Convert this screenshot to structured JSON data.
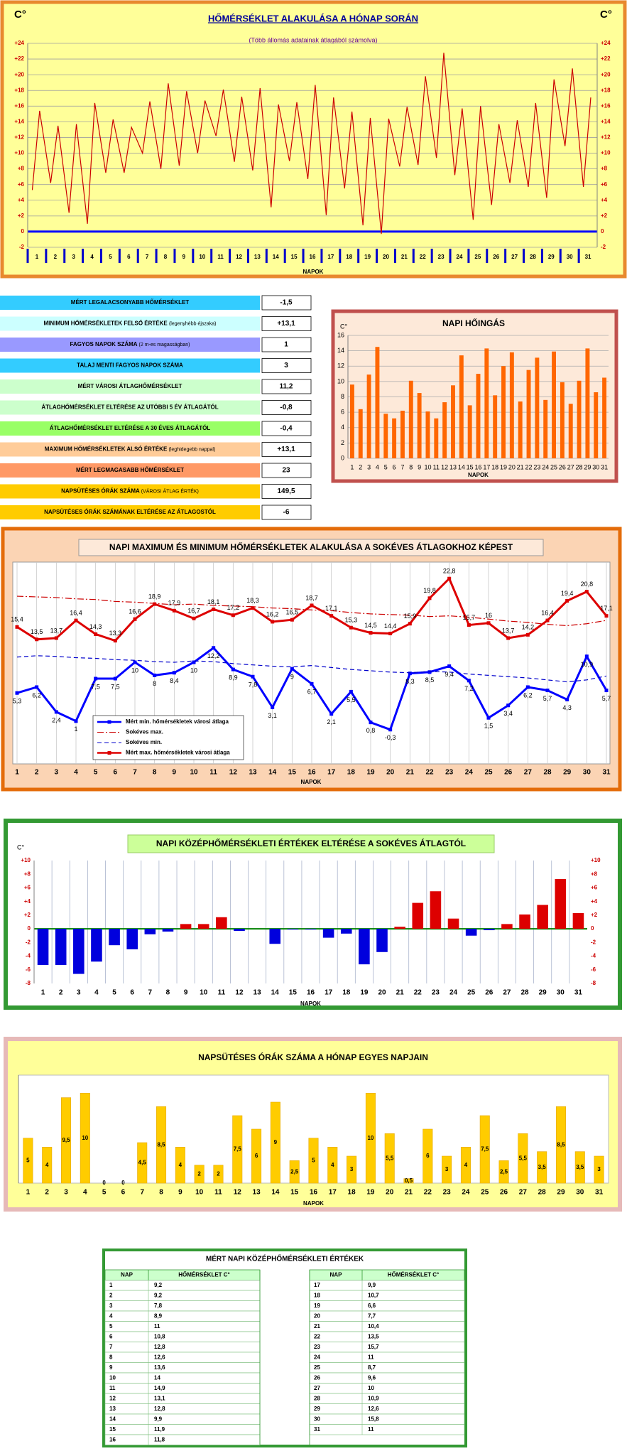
{
  "chart_data": [
    {
      "type": "line",
      "title": "HŐMÉRSÉKLET ALAKULÁSA A HÓNAP SORÁN",
      "subtitle": "(Több állomás adatainak átlagából számolva)",
      "y_unit": "C°",
      "xlabel": "NAPOK",
      "x": [
        0.75,
        1.15,
        1.75,
        2.15,
        2.75,
        3.15,
        3.75,
        4.15,
        4.75,
        5.15,
        5.75,
        6.15,
        6.75,
        7.15,
        7.75,
        8.15,
        8.75,
        9.15,
        9.75,
        10.15,
        10.75,
        11.15,
        11.75,
        12.15,
        12.75,
        13.15,
        13.75,
        14.15,
        14.75,
        15.15,
        15.75,
        16.15,
        16.75,
        17.15,
        17.75,
        18.15,
        18.75,
        19.15,
        19.75,
        20.15,
        20.75,
        21.15,
        21.75,
        22.15,
        22.75,
        23.15,
        23.75,
        24.15,
        24.75,
        25.15,
        25.75,
        26.15,
        26.75,
        27.15,
        27.75,
        28.15,
        28.75,
        29.15,
        29.75,
        30.15,
        30.75,
        31.15
      ],
      "values": [
        5.3,
        15.4,
        6.2,
        13.5,
        2.4,
        13.7,
        1,
        16.4,
        7.5,
        14.3,
        7.5,
        13.3,
        10,
        16.6,
        8,
        18.9,
        8.4,
        17.9,
        10,
        16.7,
        12.2,
        18.1,
        8.9,
        17.2,
        7.8,
        18.3,
        3.1,
        16.2,
        9,
        16.5,
        6.7,
        18.7,
        2.1,
        17.1,
        5.5,
        15.3,
        0.8,
        14.5,
        -0.3,
        14.4,
        8.3,
        15.9,
        8.5,
        19.8,
        9.4,
        22.8,
        7.2,
        15.7,
        1.5,
        16,
        3.4,
        13.7,
        6.2,
        14.2,
        5.7,
        16.4,
        4.3,
        19.4,
        10.9,
        20.8,
        5.7,
        17.1
      ],
      "color": "#cc0000",
      "xlim": [
        0.5,
        31.5
      ],
      "xticks": [
        1,
        2,
        3,
        4,
        5,
        6,
        7,
        8,
        9,
        10,
        11,
        12,
        13,
        14,
        15,
        16,
        17,
        18,
        19,
        20,
        21,
        22,
        23,
        24,
        25,
        26,
        27,
        28,
        29,
        30,
        31
      ],
      "ylim": [
        -2,
        24
      ],
      "yticks": [
        -2,
        0,
        {
          "value": 2,
          "label": "+2"
        },
        {
          "value": 4,
          "label": "+4"
        },
        {
          "value": 6,
          "label": "+6"
        },
        {
          "value": 8,
          "label": "+8"
        },
        {
          "value": 10,
          "label": "+10"
        },
        {
          "value": 12,
          "label": "+12"
        },
        {
          "value": 14,
          "label": "+14"
        },
        {
          "value": 16,
          "label": "+16"
        },
        {
          "value": 18,
          "label": "+18"
        },
        {
          "value": 20,
          "label": "+20"
        },
        {
          "value": 22,
          "label": "+22"
        },
        {
          "value": 24,
          "label": "+24"
        }
      ],
      "grid": true,
      "zero_line_color": "#0000ff"
    },
    {
      "type": "bar",
      "title": "NAPI HŐINGÁS",
      "y_unit": "C°",
      "xlabel": "NAPOK",
      "categories": [
        1,
        2,
        3,
        4,
        5,
        6,
        7,
        8,
        9,
        10,
        11,
        12,
        13,
        14,
        15,
        16,
        17,
        18,
        19,
        20,
        21,
        22,
        23,
        24,
        25,
        26,
        27,
        28,
        29,
        30,
        31
      ],
      "values": [
        9.6,
        6.4,
        10.9,
        14.5,
        5.8,
        5.2,
        6.2,
        10.1,
        8.5,
        6.1,
        5.2,
        7.3,
        9.5,
        13.4,
        6.9,
        11,
        14.3,
        8.2,
        12,
        13.8,
        7.4,
        11.5,
        13.1,
        7.6,
        13.9,
        9.9,
        7.1,
        10.1,
        14.3,
        8.6,
        10.5
      ],
      "color": "#ff6600",
      "ylim": [
        0,
        16
      ],
      "yticks": [
        0,
        2,
        4,
        6,
        8,
        10,
        12,
        14,
        16
      ],
      "grid": true
    },
    {
      "type": "line",
      "title": "NAPI MAXIMUM ÉS MINIMUM HŐMÉRSÉKLETEK ALAKULÁSA A SOKÉVES ÁTLAGOKHOZ KÉPEST",
      "xlabel": "NAPOK",
      "categories": [
        1,
        2,
        3,
        4,
        5,
        6,
        7,
        8,
        9,
        10,
        11,
        12,
        13,
        14,
        15,
        16,
        17,
        18,
        19,
        20,
        21,
        22,
        23,
        24,
        25,
        26,
        27,
        28,
        29,
        30,
        31
      ],
      "ylim": [
        -5,
        25
      ],
      "legend": "lower-left",
      "series": [
        {
          "name": "Mért min. hőmérsékletek városi átlaga",
          "color": "#0000ff",
          "style": "solid",
          "marker": "square",
          "values": [
            5.3,
            6.2,
            2.4,
            1,
            7.5,
            7.5,
            10,
            8,
            8.4,
            10,
            12.2,
            8.9,
            7.8,
            3.1,
            9,
            6.7,
            2.1,
            5.5,
            0.8,
            -0.3,
            8.3,
            8.5,
            9.4,
            7.2,
            1.5,
            3.4,
            6.2,
            5.7,
            4.3,
            10.9,
            5.7
          ],
          "value_labels": [
            "5,3",
            "6,2",
            "2,4",
            "1",
            "7,5",
            "7,5",
            "10",
            "8",
            "8,4",
            "10",
            "12,2",
            "8,9",
            "7,8",
            "3,1",
            "9",
            "6,7",
            "2,1",
            "5,5",
            "0,8",
            "-0,3",
            "8,3",
            "8,5",
            "9,4",
            "7,2",
            "1,5",
            "3,4",
            "6,2",
            "5,7",
            "4,3",
            "10,9",
            "5,7"
          ]
        },
        {
          "name": "Sokéves max.",
          "color": "#cc0000",
          "style": "dashdot",
          "values": [
            20.1,
            20.0,
            19.9,
            19.7,
            19.6,
            19.3,
            19.2,
            19.0,
            18.8,
            18.9,
            18.7,
            18.6,
            18.5,
            18.3,
            18.2,
            18.0,
            17.9,
            17.6,
            17.4,
            17.3,
            17.2,
            17.0,
            17.1,
            16.9,
            16.6,
            16.3,
            16.1,
            15.8,
            15.6,
            15.9,
            16.4
          ]
        },
        {
          "name": "Sokéves min.",
          "color": "#0000cc",
          "style": "dashed",
          "values": [
            10.8,
            11.0,
            10.9,
            10.7,
            10.6,
            10.4,
            10.3,
            10.1,
            10.0,
            10.2,
            10.1,
            9.8,
            9.6,
            9.4,
            9.3,
            9.5,
            9.2,
            8.9,
            8.7,
            8.5,
            8.4,
            8.6,
            8.5,
            8.2,
            8.0,
            7.8,
            7.6,
            7.3,
            7.0,
            7.3,
            7.9
          ]
        },
        {
          "name": "Mért max. hőmérsékletek városi átlaga",
          "color": "#dd0000",
          "style": "solid",
          "marker": "square",
          "values": [
            15.4,
            13.5,
            13.7,
            16.4,
            14.3,
            13.3,
            16.6,
            18.9,
            17.9,
            16.7,
            18.1,
            17.2,
            18.3,
            16.2,
            16.5,
            18.7,
            17.1,
            15.3,
            14.5,
            14.4,
            15.9,
            19.8,
            22.8,
            15.7,
            16,
            13.7,
            14.2,
            16.4,
            19.4,
            20.8,
            17.1
          ],
          "value_labels": [
            "15,4",
            "13,5",
            "13,7",
            "16,4",
            "14,3",
            "13,3",
            "16,6",
            "18,9",
            "17,9",
            "16,7",
            "18,1",
            "17,2",
            "18,3",
            "16,2",
            "16,5",
            "18,7",
            "17,1",
            "15,3",
            "14,5",
            "14,4",
            "15,9",
            "19,8",
            "22,8",
            "15,7",
            "16",
            "13,7",
            "14,2",
            "16,4",
            "19,4",
            "20,8",
            "17,1"
          ]
        }
      ]
    },
    {
      "type": "bar",
      "title": "NAPI KÖZÉPHŐMÉRSÉKLETI ÉRTÉKEK ELTÉRÉSE A SOKÉVES ÁTLAGTÓL",
      "y_unit": "C°",
      "xlabel": "NAPOK",
      "categories": [
        1,
        2,
        3,
        4,
        5,
        6,
        7,
        8,
        9,
        10,
        11,
        12,
        13,
        14,
        15,
        16,
        17,
        18,
        19,
        20,
        21,
        22,
        23,
        24,
        25,
        26,
        27,
        28,
        29,
        30,
        31
      ],
      "values": [
        -5.3,
        -5.3,
        -6.6,
        -4.8,
        -2.4,
        -3,
        -0.8,
        -0.4,
        0.7,
        0.7,
        1.7,
        -0.3,
        0,
        -2.2,
        -0.1,
        -0.1,
        -1.3,
        -0.7,
        -5.2,
        -3.4,
        0.3,
        3.8,
        5.5,
        1.5,
        -1,
        -0.2,
        0.7,
        2.1,
        3.5,
        7.3,
        2.3
      ],
      "positive_color": "#dd0000",
      "negative_color": "#0000dd",
      "zero_line_color": "#008000",
      "ylim": [
        -8,
        10
      ],
      "yticks": [
        -8,
        -6,
        -4,
        -2,
        0,
        {
          "value": 2,
          "label": "+2"
        },
        {
          "value": 4,
          "label": "+4"
        },
        {
          "value": 6,
          "label": "+6"
        },
        {
          "value": 8,
          "label": "+8"
        },
        {
          "value": 10,
          "label": "+10"
        }
      ]
    },
    {
      "type": "bar",
      "title": "NAPSÜTÉSES ÓRÁK SZÁMA A HÓNAP EGYES NAPJAIN",
      "xlabel": "NAPOK",
      "categories": [
        1,
        2,
        3,
        4,
        5,
        6,
        7,
        8,
        9,
        10,
        11,
        12,
        13,
        14,
        15,
        16,
        17,
        18,
        19,
        20,
        21,
        22,
        23,
        24,
        25,
        26,
        27,
        28,
        29,
        30,
        31
      ],
      "values": [
        5,
        4,
        9.5,
        10,
        0,
        0,
        4.5,
        8.5,
        4,
        2,
        2,
        7.5,
        6,
        9,
        2.5,
        5,
        4,
        3,
        10,
        5.5,
        0.5,
        6,
        3,
        4,
        7.5,
        2.5,
        5.5,
        3.5,
        8.5,
        3.5,
        3
      ],
      "value_labels": [
        "5",
        "4",
        "9,5",
        "10",
        "0",
        "0",
        "4,5",
        "8,5",
        "4",
        "2",
        "2",
        "7,5",
        "6",
        "9",
        "2,5",
        "5",
        "4",
        "3",
        "10",
        "5,5",
        "0,5",
        "6",
        "3",
        "4",
        "7,5",
        "2,5",
        "5,5",
        "3,5",
        "8,5",
        "3,5",
        "3"
      ],
      "color": "#ffcc00",
      "ylim": [
        0,
        12
      ]
    }
  ],
  "stats": {
    "rows": [
      {
        "label": "MÉRT LEGALACSONYABB HŐMÉRSÉKLET",
        "value": "-1,5"
      },
      {
        "label": "MINIMUM HŐMÉRSÉKLETEK FELSŐ ÉRTÉKE",
        "note": "(legenyhébb éjszaka)",
        "value": "+13,1"
      },
      {
        "label": "FAGYOS NAPOK SZÁMA",
        "note": "(2 m-es magasságban)",
        "value": "1"
      },
      {
        "label": "TALAJ MENTI FAGYOS NAPOK SZÁMA",
        "value": "3"
      },
      {
        "label": "MÉRT VÁROSI ÁTLAGHŐMÉRSÉKLET",
        "value": "11,2"
      },
      {
        "label": "ÁTLAGHŐMÉRSÉKLET ELTÉRÉSE AZ UTÓBBI 5 ÉV ÁTLAGÁTÓL",
        "value": "-0,8"
      },
      {
        "label": "ÁTLAGHŐMÉRSÉKLET ELTÉRÉSE A 30 ÉVES ÁTLAGÁTÓL",
        "value": "-0,4"
      },
      {
        "label": "MAXIMUM HŐMÉRSÉKLETEK ALSÓ ÉRTÉKE",
        "note": "(leghidegebb nappal)",
        "value": "+13,1"
      },
      {
        "label": "MÉRT LEGMAGASABB HŐMÉRSÉKLET",
        "value": "23"
      },
      {
        "label": "NAPSÜTÉSES ÓRÁK SZÁMA",
        "note": "(VÁROSI ÁTLAG ÉRTÉK)",
        "value": "149,5"
      },
      {
        "label": "NAPSÜTÉSES ÓRÁK SZÁMÁNAK ELTÉRÉSE AZ ÁTLAGOSTÓL",
        "value": "-6"
      }
    ]
  },
  "daily_table": {
    "title": "MÉRT NAPI KÖZÉPHŐMÉRSÉKLETI ÉRTÉKEK",
    "header": [
      "NAP",
      "HŐMÉRSÉKLET  C°"
    ],
    "left": [
      [
        "1",
        "9,2"
      ],
      [
        "2",
        "9,2"
      ],
      [
        "3",
        "7,8"
      ],
      [
        "4",
        "8,9"
      ],
      [
        "5",
        "11"
      ],
      [
        "6",
        "10,8"
      ],
      [
        "7",
        "12,8"
      ],
      [
        "8",
        "12,6"
      ],
      [
        "9",
        "13,6"
      ],
      [
        "10",
        "14"
      ],
      [
        "11",
        "14,9"
      ],
      [
        "12",
        "13,1"
      ],
      [
        "13",
        "12,8"
      ],
      [
        "14",
        "9,9"
      ],
      [
        "15",
        "11,9"
      ],
      [
        "16",
        "11,8"
      ]
    ],
    "right": [
      [
        "17",
        "9,9"
      ],
      [
        "18",
        "10,7"
      ],
      [
        "19",
        "6,6"
      ],
      [
        "20",
        "7,7"
      ],
      [
        "21",
        "10,4"
      ],
      [
        "22",
        "13,5"
      ],
      [
        "23",
        "15,7"
      ],
      [
        "24",
        "11"
      ],
      [
        "25",
        "8,7"
      ],
      [
        "26",
        "9,6"
      ],
      [
        "27",
        "10"
      ],
      [
        "28",
        "10,9"
      ],
      [
        "29",
        "12,6"
      ],
      [
        "30",
        "15,8"
      ],
      [
        "31",
        "11"
      ]
    ]
  }
}
